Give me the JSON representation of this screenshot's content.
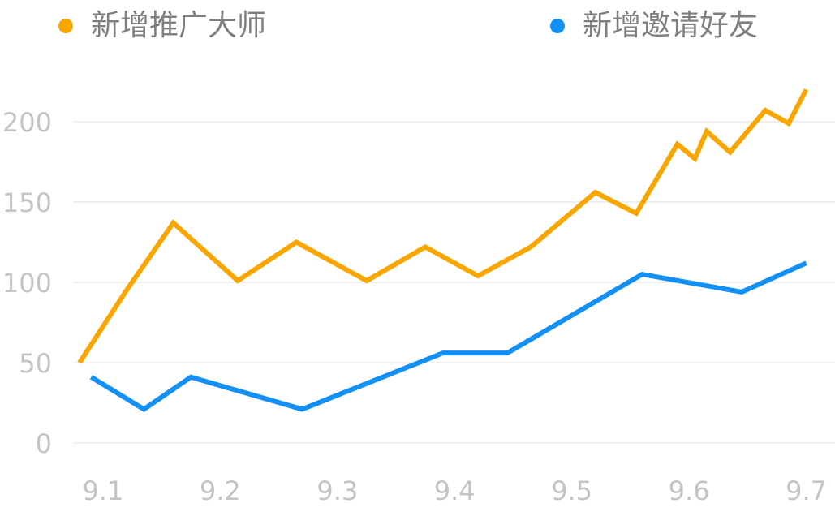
{
  "chart_data": {
    "type": "line",
    "title": "",
    "xlabel": "",
    "ylabel": "",
    "ylim": [
      0,
      200
    ],
    "yticks": [
      0,
      50,
      100,
      150,
      200
    ],
    "xlim": [
      9.08,
      9.71
    ],
    "xticks": [
      "9.1",
      "9.2",
      "9.3",
      "9.4",
      "9.5",
      "9.6",
      "9.7"
    ],
    "grid": "horizontal",
    "legend_position": "top",
    "series": [
      {
        "name": "新增推广大师",
        "color": "#FAA600",
        "points": [
          [
            9.08,
            50
          ],
          [
            9.12,
            95
          ],
          [
            9.16,
            137
          ],
          [
            9.215,
            101
          ],
          [
            9.265,
            125
          ],
          [
            9.325,
            101
          ],
          [
            9.375,
            122
          ],
          [
            9.42,
            104
          ],
          [
            9.465,
            122
          ],
          [
            9.52,
            156
          ],
          [
            9.555,
            143
          ],
          [
            9.59,
            186
          ],
          [
            9.605,
            177
          ],
          [
            9.615,
            194
          ],
          [
            9.635,
            181
          ],
          [
            9.665,
            207
          ],
          [
            9.685,
            199
          ],
          [
            9.7,
            220
          ]
        ]
      },
      {
        "name": "新增邀请好友",
        "color": "#1290F5",
        "points": [
          [
            9.09,
            41
          ],
          [
            9.135,
            21
          ],
          [
            9.175,
            41
          ],
          [
            9.27,
            21
          ],
          [
            9.39,
            56
          ],
          [
            9.445,
            56
          ],
          [
            9.56,
            105
          ],
          [
            9.645,
            94
          ],
          [
            9.7,
            112
          ]
        ]
      }
    ]
  }
}
